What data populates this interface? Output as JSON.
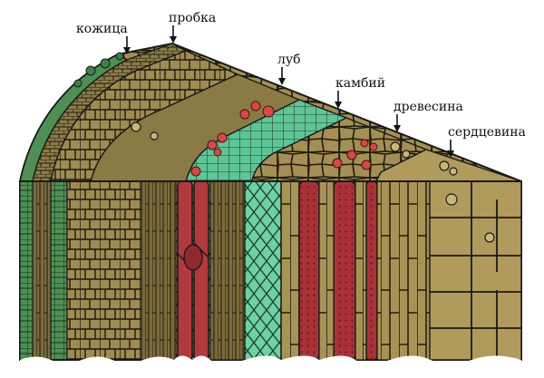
{
  "labels": {
    "skin": "кожица",
    "cork": "пробка",
    "phloem": "луб",
    "cambium": "камбий",
    "wood": "древесина",
    "pith": "сердцевина"
  },
  "watermark": "",
  "colors": {
    "tissue_olive": "#a48f54",
    "tissue_dark": "#6e6232",
    "bark_green": "#4f8f55",
    "cambium_green": "#6fd0a3",
    "sieve_red": "#c23e3e",
    "vessel_red": "#a83238",
    "outline": "#1a1a1a",
    "background": "#ffffff"
  }
}
